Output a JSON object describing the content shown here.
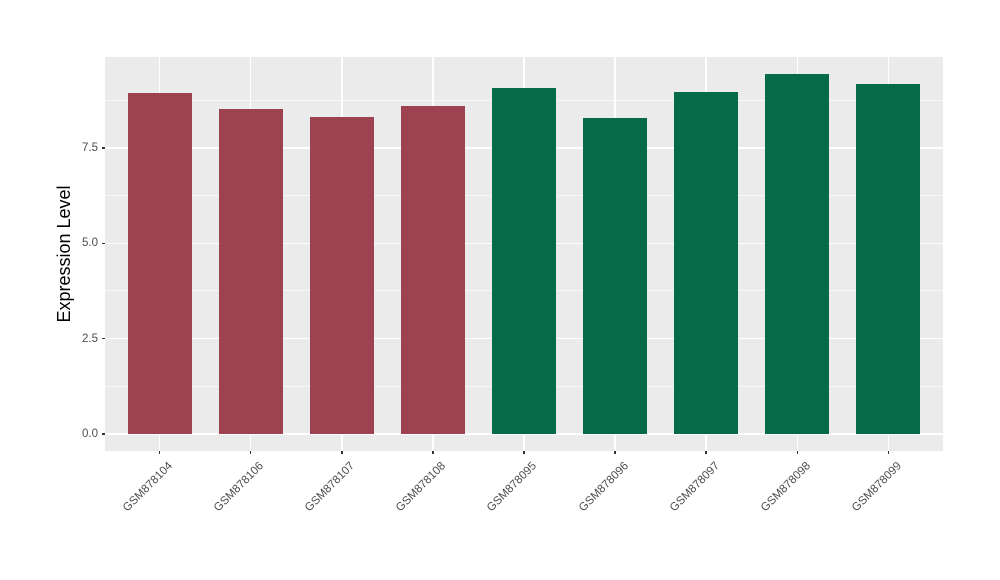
{
  "chart_data": {
    "type": "bar",
    "title": "",
    "xlabel": "",
    "ylabel": "Expression Level",
    "categories": [
      "GSM878104",
      "GSM878106",
      "GSM878107",
      "GSM878108",
      "GSM878095",
      "GSM878096",
      "GSM878097",
      "GSM878098",
      "GSM878099"
    ],
    "values": [
      8.94,
      8.52,
      8.31,
      8.6,
      9.07,
      8.29,
      8.97,
      9.44,
      9.18
    ],
    "bar_colors": [
      "#9C4251",
      "#9C4251",
      "#9C4251",
      "#9C4251",
      "#046A48",
      "#046A48",
      "#046A48",
      "#046A48",
      "#046A48"
    ],
    "groups": [
      {
        "name": "red-group",
        "color": "#9C4251",
        "members": [
          "GSM878104",
          "GSM878106",
          "GSM878107",
          "GSM878108"
        ]
      },
      {
        "name": "green-group",
        "color": "#046A48",
        "members": [
          "GSM878095",
          "GSM878096",
          "GSM878097",
          "GSM878098",
          "GSM878099"
        ]
      }
    ],
    "ylim": [
      -0.45,
      9.89
    ],
    "yticks": [
      0.0,
      2.5,
      5.0,
      7.5
    ],
    "ytick_labels": [
      "0.0",
      "2.5",
      "5.0",
      "7.5"
    ],
    "yminor_ticks": [
      1.25,
      3.75,
      6.25,
      8.75
    ],
    "bar_width_fraction": 0.7,
    "grid": "on",
    "legend_position": "none",
    "panel_background": "#EBEBEB",
    "gridline_color": "#FFFFFF",
    "tick_color": "#333333",
    "axis_text_color": "#4D4D4D",
    "axis_title_color": "#000000"
  }
}
